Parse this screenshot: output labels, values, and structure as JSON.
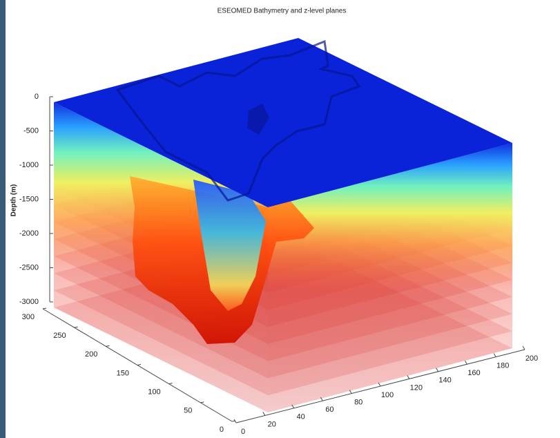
{
  "chart_data": {
    "type": "surface3d",
    "title": "ESEOMED Bathymetry and z-level planes",
    "zlabel": "Depth (m)",
    "xlim": [
      0,
      300
    ],
    "xticks": [
      0,
      50,
      100,
      150,
      200,
      250,
      300
    ],
    "ylim": [
      0,
      200
    ],
    "yticks": [
      0,
      20,
      40,
      60,
      80,
      100,
      120,
      140,
      160,
      180,
      200
    ],
    "zlim": [
      -3000,
      0
    ],
    "zticks": [
      0,
      -500,
      -1000,
      -1500,
      -2000,
      -2500,
      -3000
    ],
    "z_levels": [
      -500,
      -750,
      -1000,
      -1250,
      -1500,
      -1750,
      -2000,
      -2250,
      -2500,
      -2750,
      -3000
    ],
    "plane_color": "#d03030",
    "top_color": "#0a22d8"
  }
}
